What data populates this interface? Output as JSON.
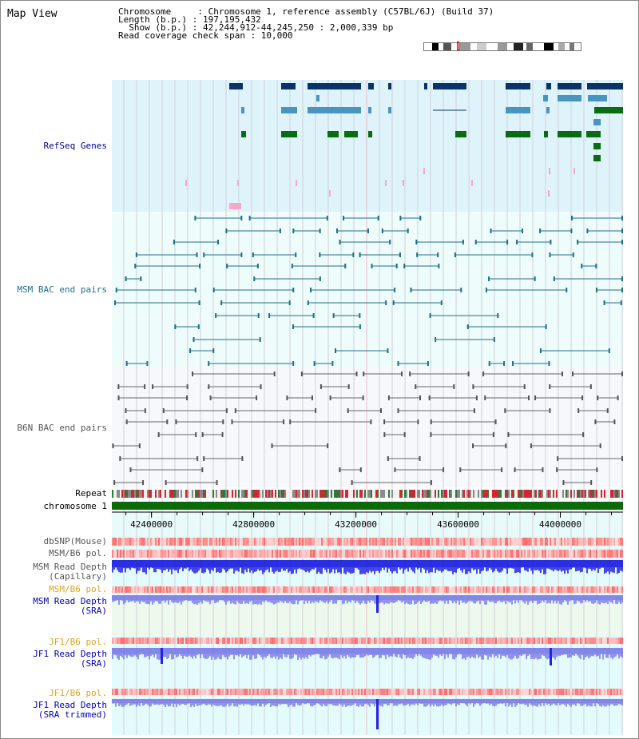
{
  "page_title": "Map View",
  "info": {
    "chromosome_label": "Chromosome     : Chromosome 1, reference assembly (C57BL/6J) (Build 37)",
    "length_label": "Length (b.p.) : 197,195,432",
    "show_label": "  Show (b.p.) : 42,244,912-44,245,250 : 2,000,339 bp",
    "span_label": "Read coverage check span : 10,000"
  },
  "tracks": {
    "refseq": "RefSeq Genes",
    "msm_bac": "MSM BAC end pairs",
    "b6n_bac": "B6N BAC end pairs",
    "repeat": "Repeat",
    "chromosome": "chromosome 1",
    "dbsnp": "dbSNP(Mouse)",
    "msm_b6_pol_1": "MSM/B6 pol.",
    "msm_depth_cap_1": "MSM Read Depth",
    "msm_depth_cap_2": "(Capillary)",
    "msm_b6_pol_2": "MSM/B6 pol.",
    "msm_depth_sra_1": "MSM Read Depth",
    "msm_depth_sra_2": "(SRA)",
    "jf1_pol_1": "JF1/B6 pol.",
    "jf1_depth_sra_1": "JF1 Read Depth",
    "jf1_depth_sra_2": "(SRA)",
    "jf1_pol_2": "JF1/B6 pol.",
    "jf1_depth_trim_1": "JF1 Read Depth",
    "jf1_depth_trim_2": "(SRA trimmed)"
  },
  "axis": {
    "ticks": [
      "42400000",
      "42800000",
      "43200000",
      "43600000",
      "44000000"
    ],
    "range": [
      42244912,
      44245250
    ]
  },
  "colors": {
    "refseq_bg": "#dff3fb",
    "bac_bg": "#eefcfc",
    "b6n_bg": "#f7f8fb",
    "gene_dark": "#0a3366",
    "gene_mid": "#4a94c0",
    "gene_green": "#0b6b12",
    "repeat_red": "#d3262e",
    "chromosome_green": "#0b6b0b",
    "depth_blue": "#2424e0"
  }
}
